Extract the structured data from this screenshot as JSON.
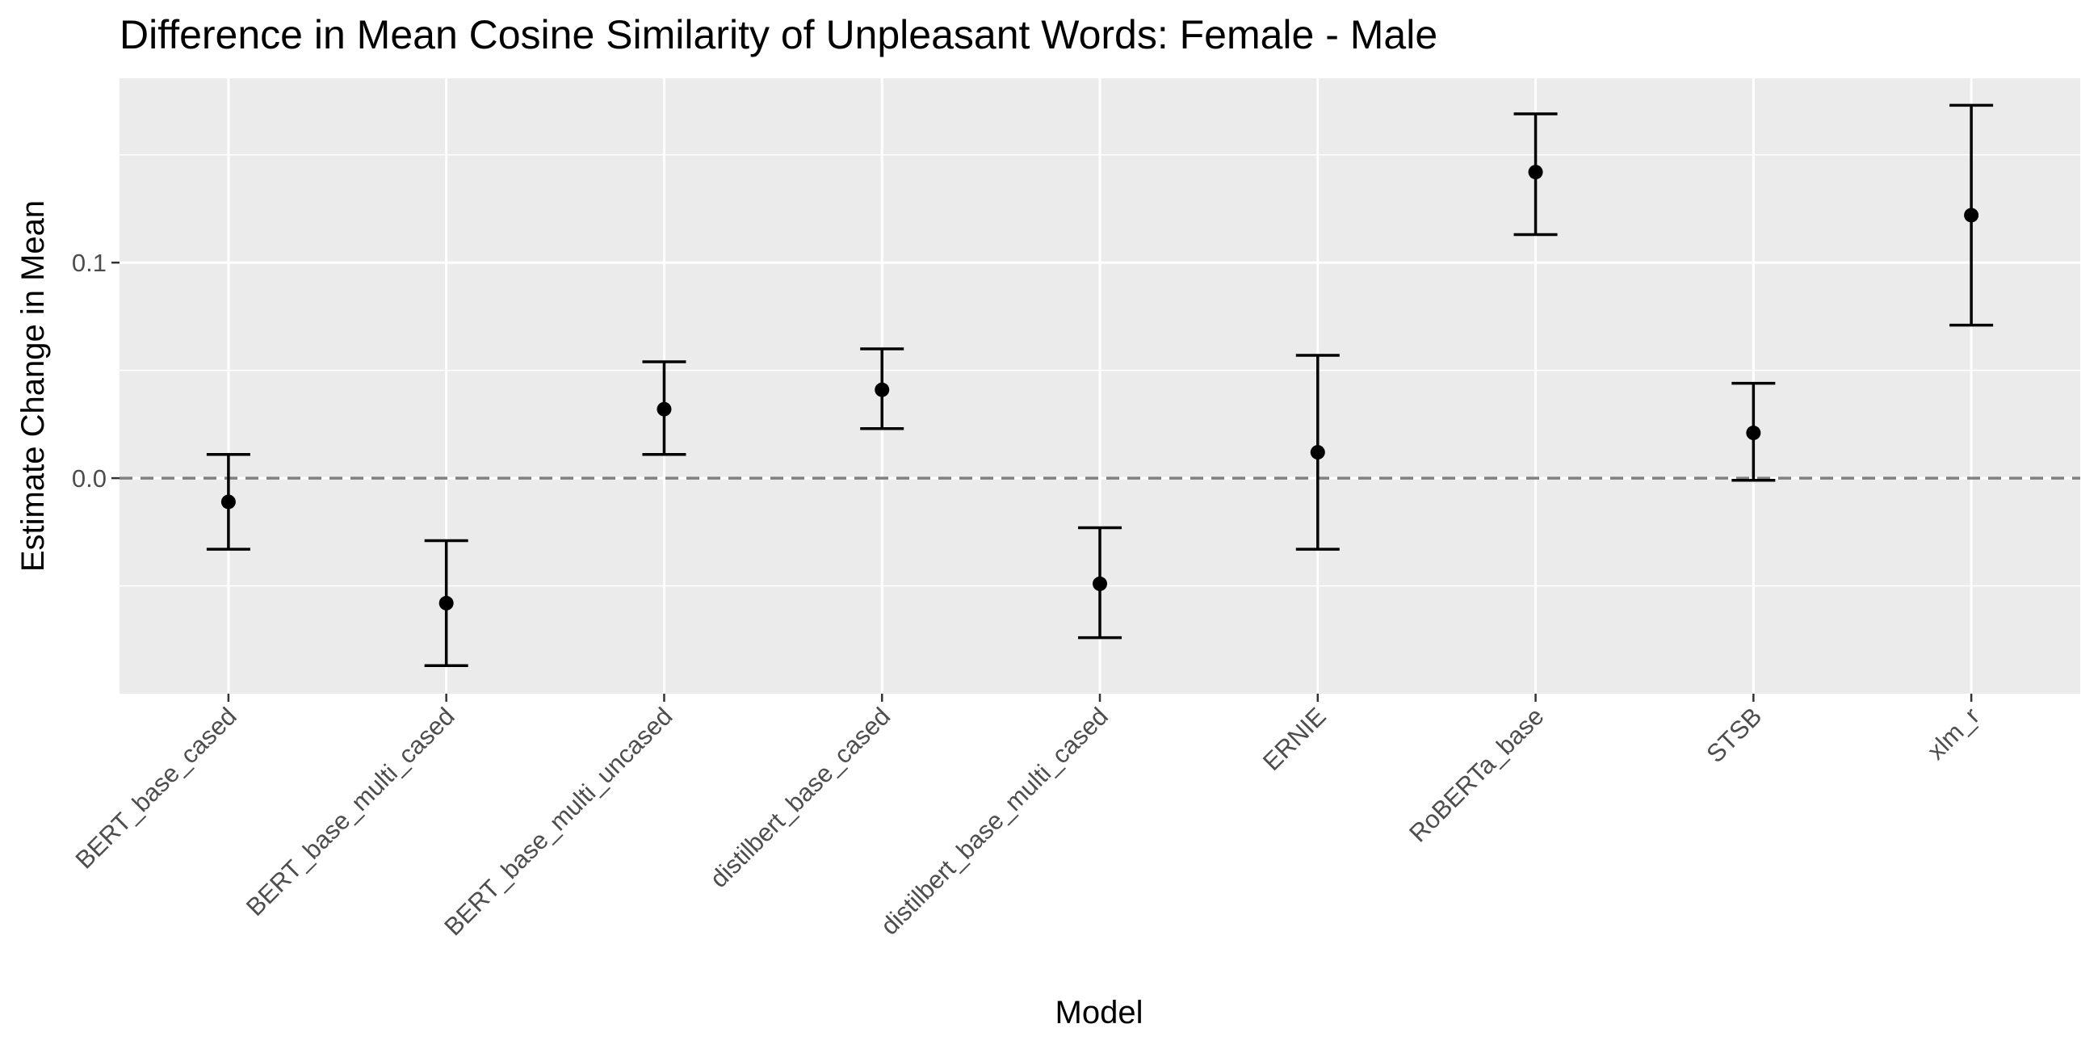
{
  "chart_data": {
    "type": "scatter",
    "title": "Difference in Mean Cosine Similarity of Unpleasant Words: Female - Male",
    "xlabel": "Model",
    "ylabel": "Estimate Change in Mean",
    "categories": [
      "BERT_base_cased",
      "BERT_base_multi_cased",
      "BERT_base_multi_uncased",
      "distilbert_base_cased",
      "distilbert_base_multi_cased",
      "ERNIE",
      "RoBERTa_base",
      "STSB",
      "xlm_r"
    ],
    "estimates": [
      -0.011,
      -0.058,
      0.032,
      0.041,
      -0.049,
      0.012,
      0.142,
      0.021,
      0.122
    ],
    "lower": [
      -0.033,
      -0.087,
      0.011,
      0.023,
      -0.074,
      -0.033,
      0.113,
      -0.001,
      0.071
    ],
    "upper": [
      0.011,
      -0.029,
      0.054,
      0.06,
      -0.023,
      0.057,
      0.169,
      0.044,
      0.173
    ],
    "ylim": [
      -0.1,
      0.1855
    ],
    "yticks": [
      0.0,
      0.1
    ],
    "ytick_labels": [
      "0.0",
      "0.1"
    ],
    "reference_line": 0.0,
    "grid": true,
    "colors": {
      "panel": "#ebebeb",
      "grid_major": "#ffffff",
      "points": "#000000",
      "reference_line": "#808080"
    }
  }
}
